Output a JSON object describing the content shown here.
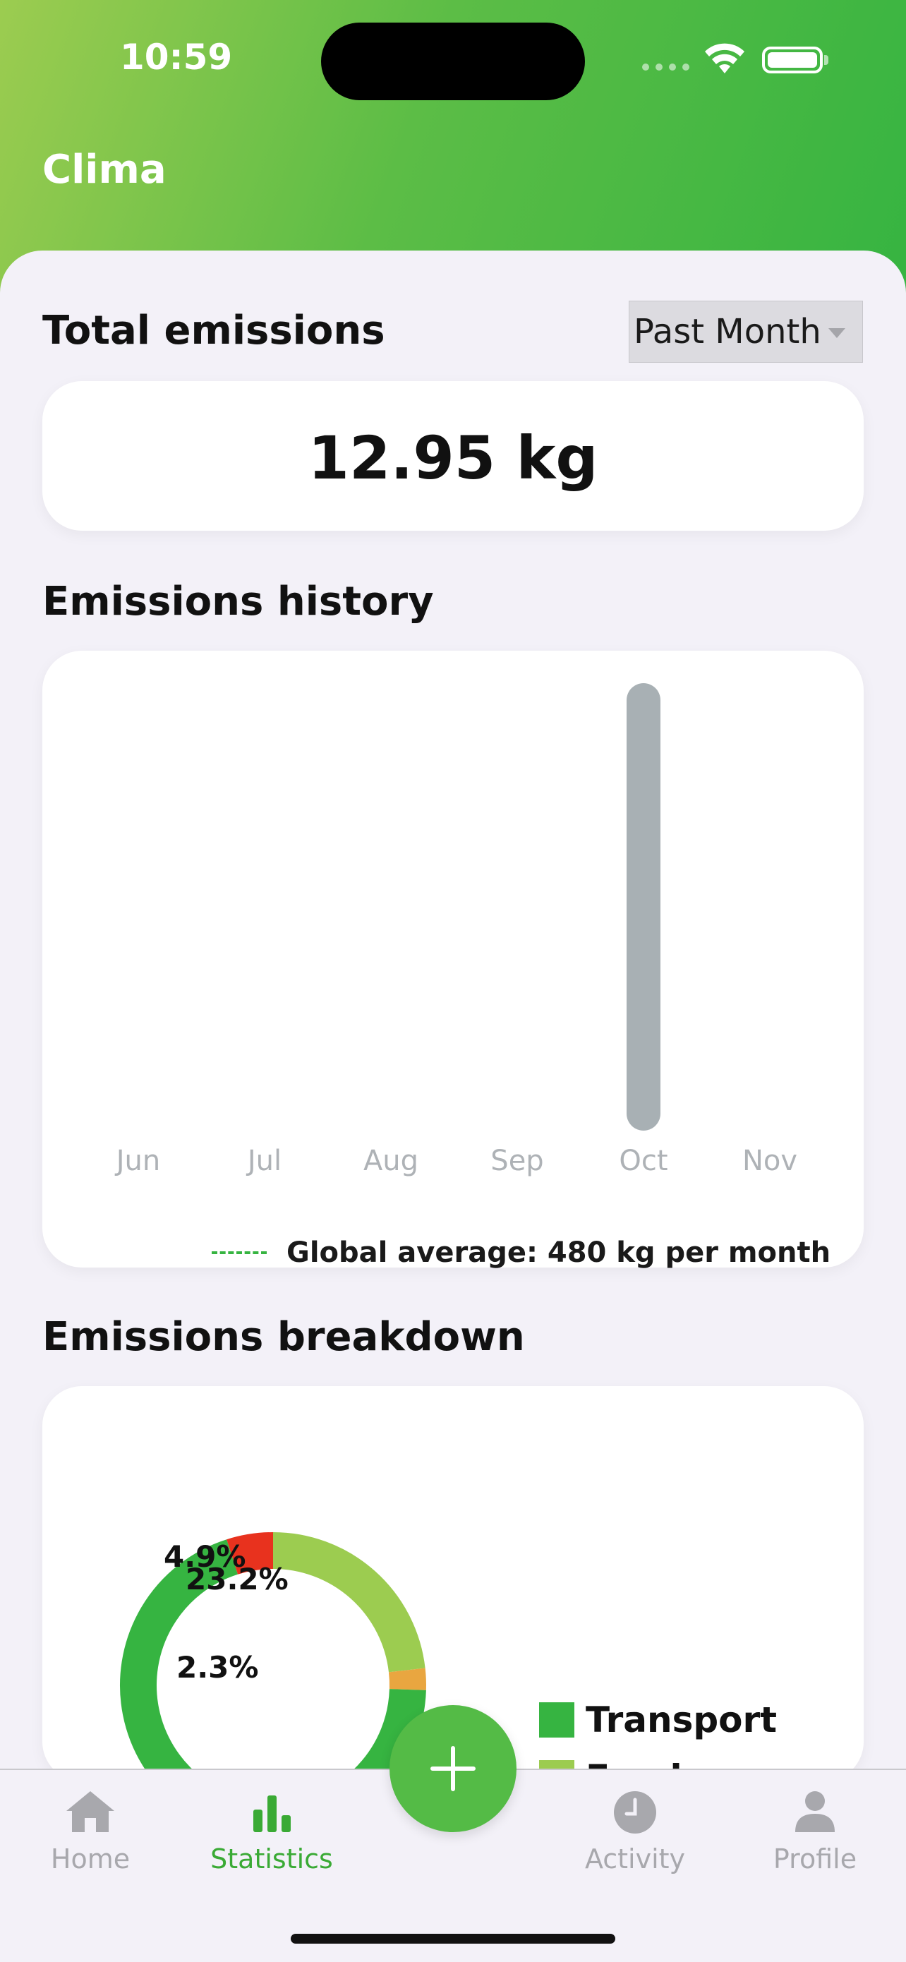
{
  "status_bar": {
    "time": "10:59"
  },
  "header": {
    "app_title": "Clima"
  },
  "total": {
    "title": "Total emissions",
    "period_selected": "Past Month",
    "value": "12.95 kg"
  },
  "history": {
    "title": "Emissions history",
    "legend": "Global average: 480 kg per month"
  },
  "breakdown": {
    "title": "Emissions breakdown",
    "legend": [
      {
        "label": "Transport",
        "color": "#36b441"
      },
      {
        "label": "Food",
        "color": "#9ccc50"
      }
    ]
  },
  "chart_data": [
    {
      "type": "bar",
      "categories": [
        "Jun",
        "Jul",
        "Aug",
        "Sep",
        "Oct",
        "Nov"
      ],
      "values": [
        0,
        0,
        0,
        0,
        12.95,
        0
      ],
      "bar_color": "#a8b0b4",
      "title": "",
      "xlabel": "",
      "ylabel": ""
    },
    {
      "type": "pie",
      "categories": [
        "Transport",
        "Food",
        "Other (orange)",
        "Other (red)"
      ],
      "values": [
        69.6,
        23.2,
        2.3,
        4.9
      ],
      "colors": [
        "#36b441",
        "#9ccc50",
        "#e9a640",
        "#e8321e"
      ],
      "data_labels": [
        "",
        "23.2%",
        "2.3%",
        "4.9%"
      ]
    }
  ],
  "tabs": [
    {
      "label": "Home",
      "icon": "house-icon",
      "active": false
    },
    {
      "label": "Statistics",
      "icon": "bar-chart-icon",
      "active": true
    },
    {
      "label": "Activity",
      "icon": "clock-icon",
      "active": false
    },
    {
      "label": "Profile",
      "icon": "person-icon",
      "active": false
    }
  ],
  "fab": {
    "icon": "plus-icon"
  },
  "colors": {
    "accent": "#36b441",
    "inactive_tab": "#a8a8ad"
  }
}
